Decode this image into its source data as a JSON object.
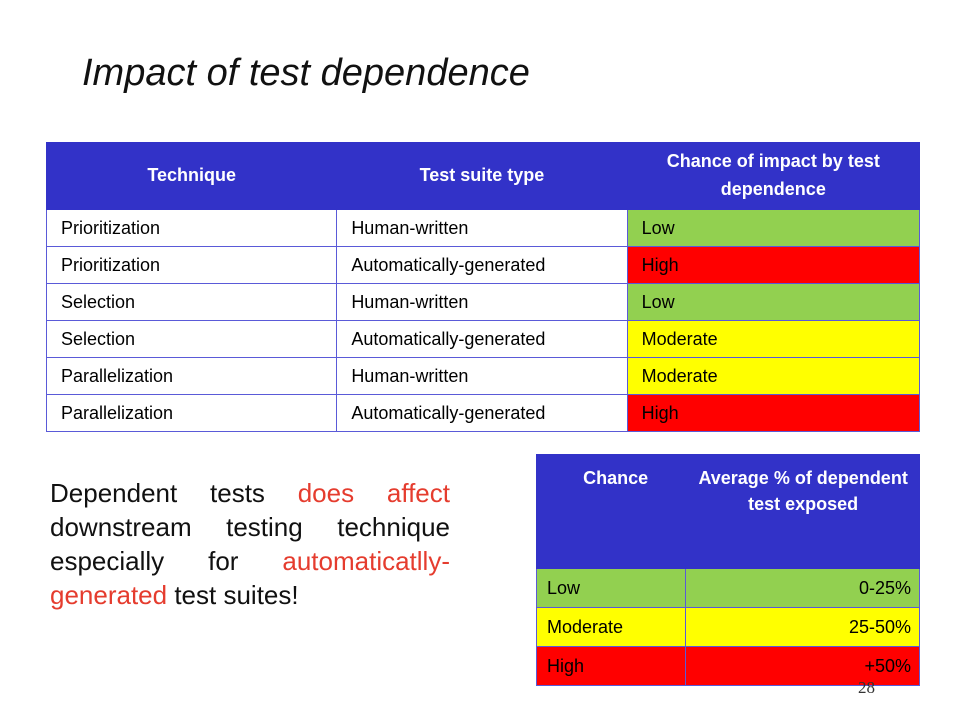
{
  "slide": {
    "title": "Impact of test dependence",
    "page_number": "28"
  },
  "main_table": {
    "headers": [
      "Technique",
      "Test suite type",
      "Chance of impact by test dependence"
    ],
    "rows": [
      {
        "technique": "Prioritization",
        "suite": "Human-written",
        "chance": "Low",
        "color": "#92d050"
      },
      {
        "technique": "Prioritization",
        "suite": "Automatically-generated",
        "chance": "High",
        "color": "#ff0000"
      },
      {
        "technique": "Selection",
        "suite": "Human-written",
        "chance": "Low",
        "color": "#92d050"
      },
      {
        "technique": "Selection",
        "suite": "Automatically-generated",
        "chance": "Moderate",
        "color": "#ffff00"
      },
      {
        "technique": "Parallelization",
        "suite": "Human-written",
        "chance": "Moderate",
        "color": "#ffff00"
      },
      {
        "technique": "Parallelization",
        "suite": "Automatically-generated",
        "chance": "High",
        "color": "#ff0000"
      }
    ]
  },
  "legend_table": {
    "headers": [
      "Chance",
      "Average % of dependent test exposed"
    ],
    "rows": [
      {
        "chance": "Low",
        "percent": "0-25%",
        "color": "#92d050"
      },
      {
        "chance": "Moderate",
        "percent": "25-50%",
        "color": "#ffff00"
      },
      {
        "chance": "High",
        "percent": "+50%",
        "color": "#ff0000"
      }
    ]
  },
  "note": {
    "part1": "Dependent tests ",
    "part2": "does affect",
    "part3": " downstream testing technique especially for ",
    "part4": "automaticatlly-generated",
    "part5": " test suites!",
    "highlight_color": "#e53c2e"
  }
}
